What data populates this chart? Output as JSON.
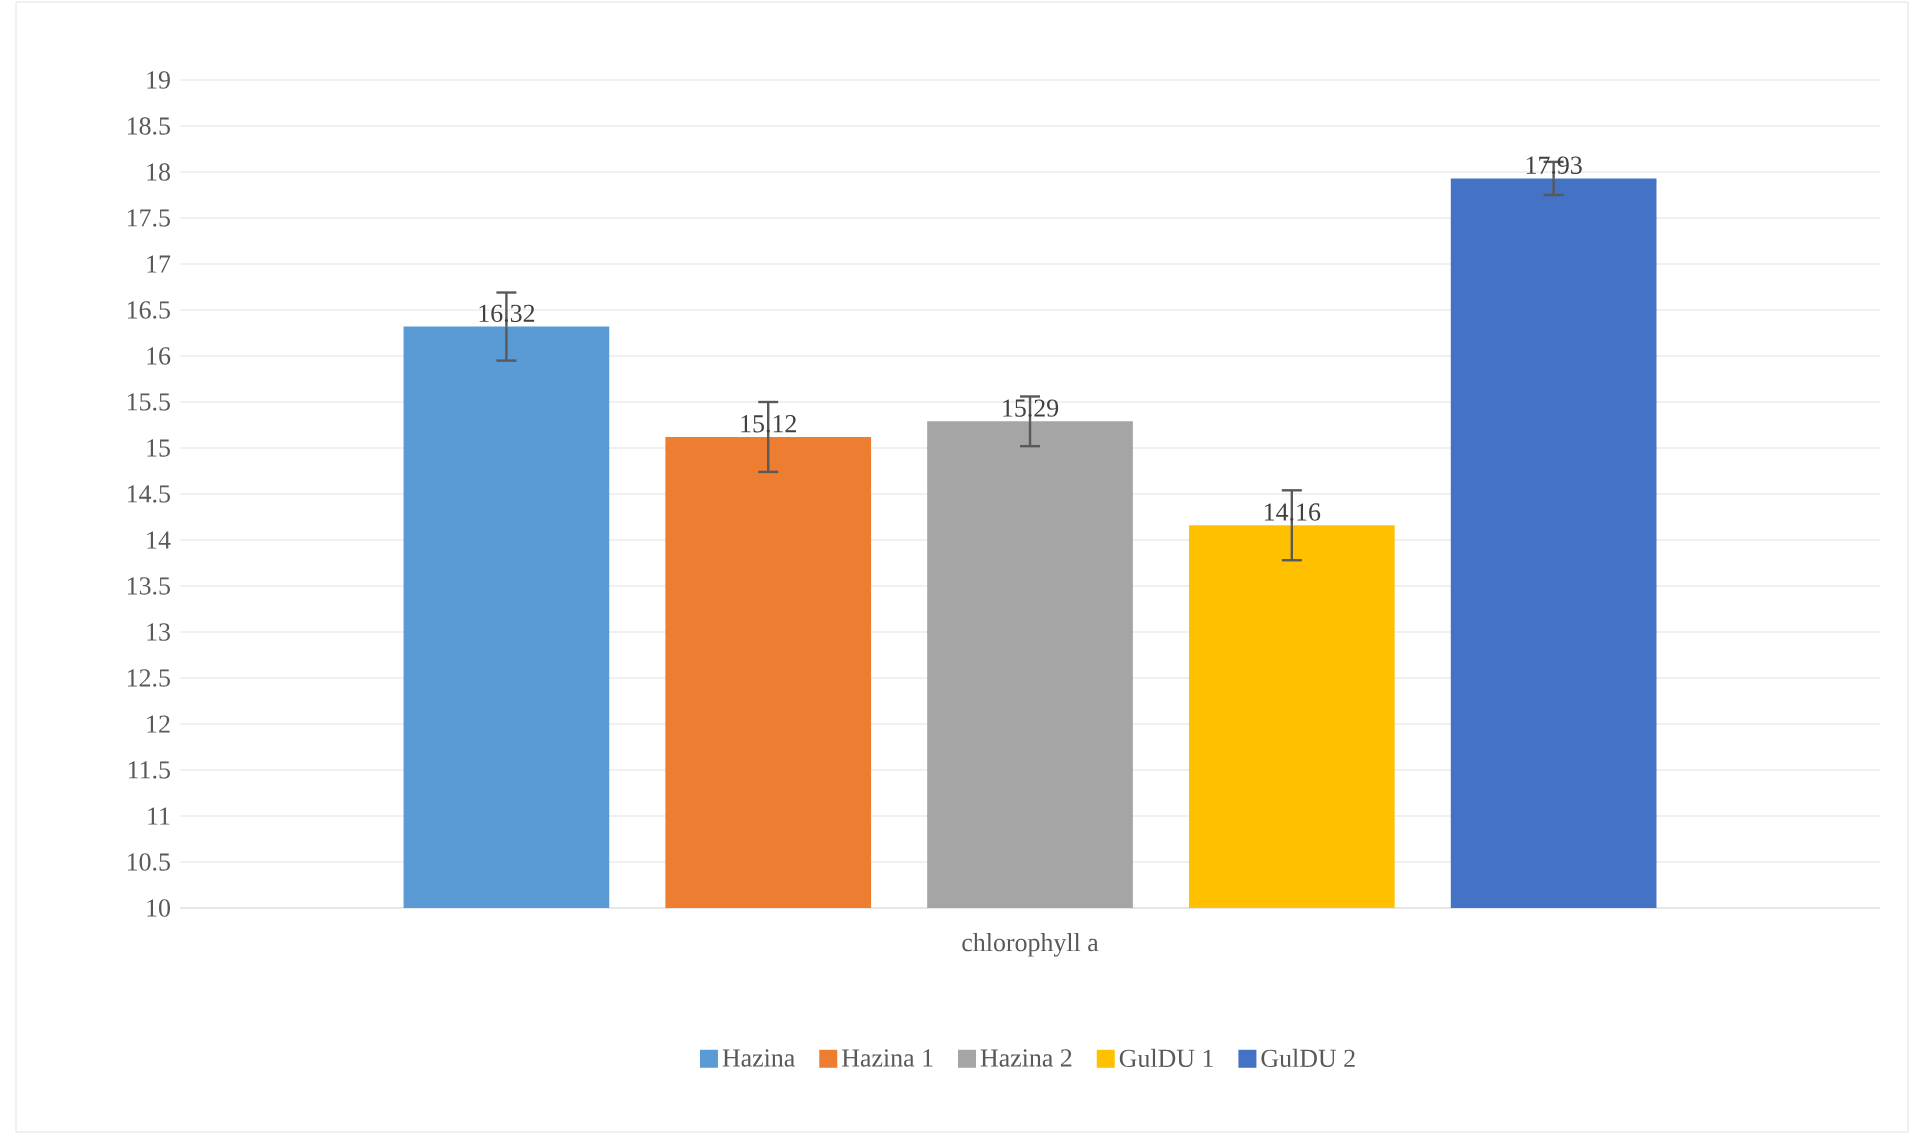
{
  "chart_data": {
    "type": "bar",
    "categories": [
      "chlorophyll a"
    ],
    "series": [
      {
        "name": "Hazina",
        "color": "#5b9bd5",
        "values": [
          16.32
        ],
        "errors": [
          0.37
        ]
      },
      {
        "name": "Hazina 1",
        "color": "#ed7d31",
        "values": [
          15.12
        ],
        "errors": [
          0.38
        ]
      },
      {
        "name": "Hazina 2",
        "color": "#a5a5a5",
        "values": [
          15.29
        ],
        "errors": [
          0.27
        ]
      },
      {
        "name": "GulDU 1",
        "color": "#ffc000",
        "values": [
          14.16
        ],
        "errors": [
          0.38
        ]
      },
      {
        "name": "GulDU 2",
        "color": "#4472c4",
        "values": [
          17.93
        ],
        "errors": [
          0.18
        ]
      }
    ],
    "ylim": [
      10,
      19
    ],
    "yticks": [
      10,
      10.5,
      11,
      11.5,
      12,
      12.5,
      13,
      13.5,
      14,
      14.5,
      15,
      15.5,
      16,
      16.5,
      17,
      17.5,
      18,
      18.5,
      19
    ],
    "grid": "y",
    "legend": "bottom",
    "data_labels": true
  }
}
